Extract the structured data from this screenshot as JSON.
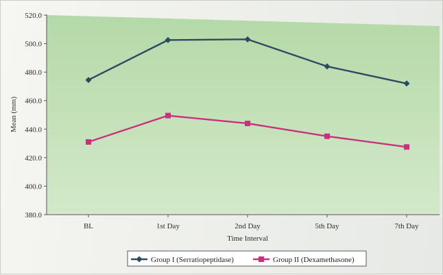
{
  "chart_data": {
    "type": "line",
    "title": "",
    "xlabel": "Time Interval",
    "ylabel": "Mean (mm)",
    "categories": [
      "BL",
      "1st Day",
      "2nd Day",
      "5th Day",
      "7th Day"
    ],
    "ylim": [
      380,
      520
    ],
    "yticks": [
      "380.0",
      "400.0",
      "420.0",
      "440.0",
      "460.0",
      "480.0",
      "500.0",
      "520.0"
    ],
    "series": [
      {
        "name": "Group I (Serratiopeptidase)",
        "values": [
          474.5,
          502.5,
          503,
          484,
          472
        ],
        "color": "#2e4a63",
        "marker": "diamond"
      },
      {
        "name": "Group II (Dexamethasone)",
        "values": [
          431,
          449.5,
          444,
          435,
          427.5
        ],
        "color": "#cc2f7f",
        "marker": "square"
      }
    ],
    "grid": false,
    "legend_position": "bottom",
    "plot_background": "#c4e2b9"
  }
}
